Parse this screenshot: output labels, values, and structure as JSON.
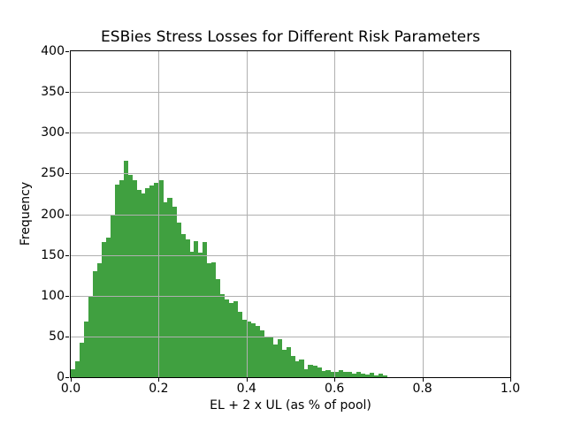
{
  "figure": {
    "title": "ESBies Stress Losses for Different Risk Parameters",
    "xlabel": "EL + 2 x UL (as % of pool)",
    "ylabel": "Frequency",
    "background_color": "#ffffff",
    "text_color": "#000000"
  },
  "chart_data": {
    "type": "bar",
    "subtype": "histogram",
    "title": "ESBies Stress Losses for Different Risk Parameters",
    "xlabel": "EL + 2 x UL (as % of pool)",
    "ylabel": "Frequency",
    "xlim": [
      0.0,
      1.0
    ],
    "ylim": [
      0,
      400
    ],
    "x_ticks": [
      0.0,
      0.2,
      0.4,
      0.6,
      0.8,
      1.0
    ],
    "x_tick_labels": [
      "0.0",
      "0.2",
      "0.4",
      "0.6",
      "0.8",
      "1.0"
    ],
    "y_ticks": [
      0,
      50,
      100,
      150,
      200,
      250,
      300,
      350,
      400
    ],
    "y_tick_labels": [
      "0",
      "50",
      "100",
      "150",
      "200",
      "250",
      "300",
      "350",
      "400"
    ],
    "grid": true,
    "grid_over_bars": true,
    "legend": "none",
    "bin_start": 0.0,
    "bin_width": 0.01,
    "values": [
      10,
      20,
      42,
      68,
      100,
      130,
      140,
      166,
      171,
      200,
      236,
      242,
      266,
      248,
      242,
      230,
      226,
      232,
      235,
      238,
      242,
      215,
      220,
      209,
      190,
      176,
      169,
      154,
      167,
      153,
      166,
      140,
      141,
      120,
      102,
      95,
      91,
      93,
      80,
      70,
      68,
      66,
      63,
      57,
      50,
      50,
      40,
      47,
      34,
      37,
      26,
      19,
      22,
      10,
      15,
      14,
      12,
      8,
      9,
      7,
      7,
      9,
      7,
      6,
      4,
      6,
      4,
      3,
      5,
      2,
      4,
      2
    ],
    "colors": {
      "bar": "#40a040",
      "grid": "#b0b0b0",
      "spine": "#000000",
      "tick": "#000000",
      "text": "#000000"
    }
  }
}
